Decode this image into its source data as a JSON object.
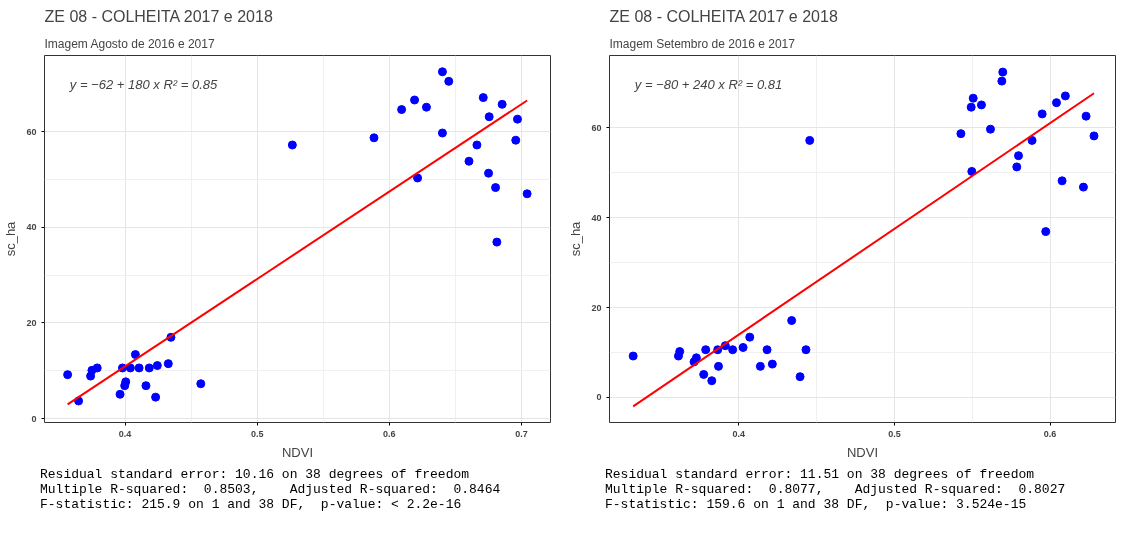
{
  "chart_data": [
    {
      "type": "scatter",
      "title": "ZE 08 - COLHEITA 2017 e 2018",
      "subtitle": "Imagem Agosto de 2016 e 2017",
      "xlabel": "NDVI",
      "ylabel": "sc_ha",
      "xlim": [
        0.339,
        0.722
      ],
      "ylim": [
        -0.8,
        75.9
      ],
      "xticks": [
        0.4,
        0.5,
        0.6,
        0.7
      ],
      "yticks": [
        0,
        20,
        40,
        60
      ],
      "grid": true,
      "series": [
        {
          "marker": "circle",
          "color": "#0000ff",
          "x": [
            0.3565,
            0.3648,
            0.3739,
            0.3749,
            0.3789,
            0.398,
            0.3962,
            0.3997,
            0.4005,
            0.404,
            0.4078,
            0.4106,
            0.4158,
            0.4183,
            0.4231,
            0.4244,
            0.4327,
            0.4347,
            0.4573,
            0.5266,
            0.5884,
            0.6093,
            0.6191,
            0.6214,
            0.6281,
            0.6402,
            0.6402,
            0.645,
            0.6603,
            0.6663,
            0.6711,
            0.6756,
            0.6751,
            0.6804,
            0.6814,
            0.6854,
            0.6957,
            0.697,
            0.7043
          ],
          "values": [
            9.2,
            3.7,
            8.9,
            10.1,
            10.6,
            10.6,
            5.1,
            6.9,
            7.7,
            10.6,
            13.4,
            10.6,
            6.9,
            10.6,
            4.5,
            11.1,
            11.5,
            17.0,
            7.3,
            57.2,
            58.7,
            64.6,
            66.6,
            50.3,
            65.1,
            72.5,
            59.7,
            70.5,
            53.8,
            57.2,
            67.1,
            63.1,
            51.3,
            48.3,
            36.9,
            65.7,
            58.2,
            62.6,
            47.0
          ]
        },
        {
          "type": "line",
          "marker": "none",
          "color": "#ff0000",
          "line_style": "solid",
          "x": [
            0.3565,
            0.7043
          ],
          "values": [
            3.0,
            66.5
          ]
        }
      ],
      "annotations": [
        "y = −62 + 180 x   R² = 0.85",
        "Residual standard error: 10.16 on 38 degrees of freedom",
        "Multiple R-squared:  0.8503,\tAdjusted R-squared:  0.8464 ",
        "F-statistic: 215.9 on 1 and 38 DF,  p-value: < 2.2e-16"
      ]
    },
    {
      "type": "scatter",
      "title": "ZE 08 - COLHEITA 2017 e 2018",
      "subtitle": "Imagem Setembro de 2016 e 2017",
      "xlabel": "NDVI",
      "ylabel": "sc_ha",
      "xlim": [
        0.317,
        0.642
      ],
      "ylim": [
        -5.6,
        76.1
      ],
      "xticks": [
        0.4,
        0.5,
        0.6
      ],
      "yticks": [
        0,
        20,
        40,
        60
      ],
      "grid": true,
      "series": [
        {
          "marker": "circle",
          "color": "#0000ff",
          "x": [
            0.3322,
            0.3613,
            0.3621,
            0.3713,
            0.3728,
            0.3775,
            0.3788,
            0.3827,
            0.3865,
            0.387,
            0.3914,
            0.3961,
            0.4028,
            0.4071,
            0.4139,
            0.4182,
            0.4216,
            0.434,
            0.4394,
            0.4432,
            0.4456,
            0.5427,
            0.5493,
            0.5506,
            0.5497,
            0.5559,
            0.5617,
            0.569,
            0.5696,
            0.5786,
            0.5797,
            0.5884,
            0.5949,
            0.5972,
            0.6041,
            0.6077,
            0.6098,
            0.6214,
            0.6231,
            0.6282
          ],
          "values": [
            9.2,
            9.2,
            10.2,
            7.9,
            8.8,
            5.1,
            10.6,
            3.7,
            10.6,
            6.9,
            11.5,
            10.6,
            11.1,
            13.4,
            6.9,
            10.6,
            7.4,
            17.1,
            4.6,
            10.6,
            57.2,
            58.7,
            64.6,
            66.6,
            50.3,
            65.1,
            59.7,
            70.4,
            72.4,
            51.3,
            53.8,
            57.2,
            63.1,
            36.9,
            65.6,
            48.2,
            67.1,
            46.8,
            62.6,
            58.2
          ]
        },
        {
          "type": "line",
          "marker": "none",
          "color": "#ff0000",
          "line_style": "solid",
          "x": [
            0.3322,
            0.6282
          ],
          "values": [
            -2.0,
            67.7
          ]
        }
      ],
      "annotations": [
        "y = −80 + 240 x   R² = 0.81",
        "Residual standard error: 11.51 on 38 degrees of freedom",
        "Multiple R-squared:  0.8077,\tAdjusted R-squared:  0.8027 ",
        "F-statistic: 159.6 on 1 and 38 DF,  p-value: 3.524e-15"
      ]
    }
  ]
}
